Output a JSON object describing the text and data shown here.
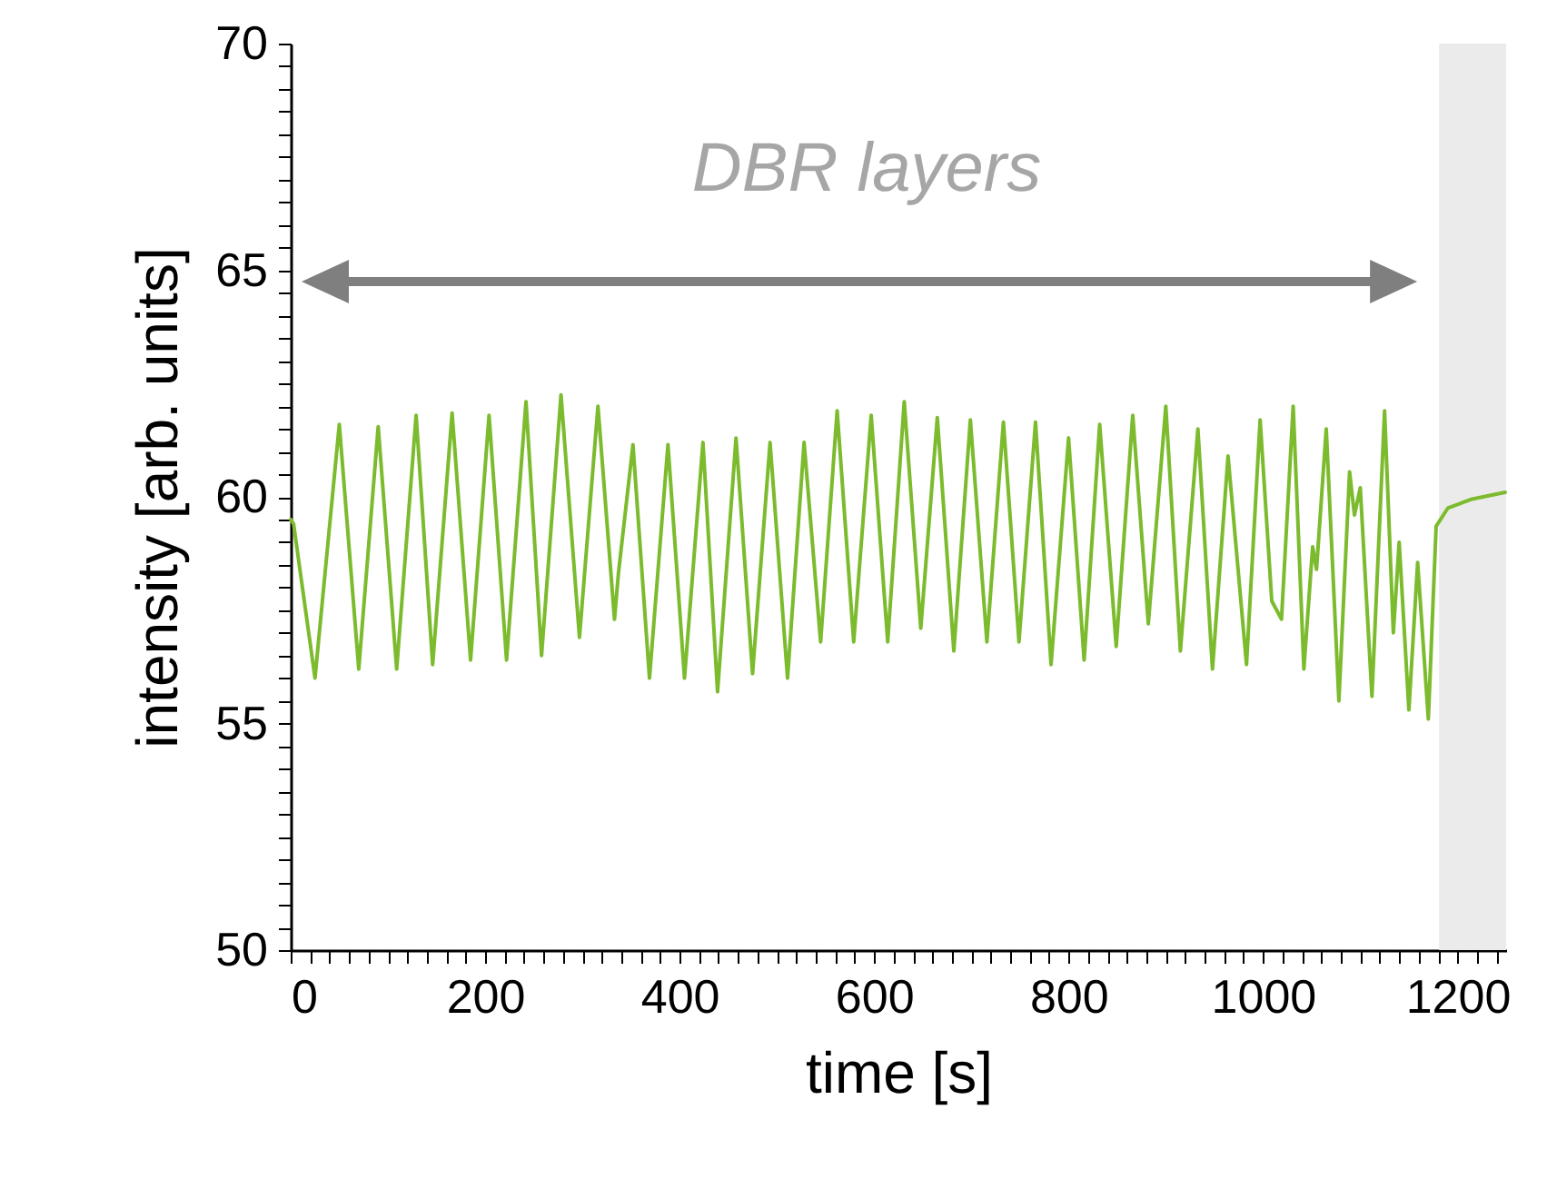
{
  "chart_data": {
    "type": "line",
    "xlabel": "time [s]",
    "ylabel": "intensity [arb. units]",
    "annotations": [
      "DBR layers"
    ],
    "bands": [
      {
        "axis": "x",
        "from": 1181,
        "to": 1250,
        "color": "#ebebeb"
      }
    ],
    "xlim": [
      0,
      1250
    ],
    "ylim": [
      50,
      70
    ],
    "grid": false,
    "marker": "none",
    "line_style": "solid",
    "xticks": [
      0,
      {
        "value": 20,
        "label": null
      },
      {
        "value": 40,
        "label": null
      },
      {
        "value": 60,
        "label": null
      },
      {
        "value": 80,
        "label": null
      },
      {
        "value": 100,
        "label": null
      },
      {
        "value": 120,
        "label": null
      },
      {
        "value": 140,
        "label": null
      },
      {
        "value": 160,
        "label": null
      },
      {
        "value": 180,
        "label": null
      },
      200,
      {
        "value": 220,
        "label": null
      },
      {
        "value": 240,
        "label": null
      },
      {
        "value": 260,
        "label": null
      },
      {
        "value": 280,
        "label": null
      },
      {
        "value": 300,
        "label": null
      },
      {
        "value": 320,
        "label": null
      },
      {
        "value": 340,
        "label": null
      },
      {
        "value": 360,
        "label": null
      },
      {
        "value": 380,
        "label": null
      },
      400,
      {
        "value": 420,
        "label": null
      },
      {
        "value": 440,
        "label": null
      },
      {
        "value": 460,
        "label": null
      },
      {
        "value": 480,
        "label": null
      },
      {
        "value": 500,
        "label": null
      },
      {
        "value": 520,
        "label": null
      },
      {
        "value": 540,
        "label": null
      },
      {
        "value": 560,
        "label": null
      },
      {
        "value": 580,
        "label": null
      },
      600,
      {
        "value": 620,
        "label": null
      },
      {
        "value": 640,
        "label": null
      },
      {
        "value": 660,
        "label": null
      },
      {
        "value": 680,
        "label": null
      },
      {
        "value": 700,
        "label": null
      },
      {
        "value": 720,
        "label": null
      },
      {
        "value": 740,
        "label": null
      },
      {
        "value": 760,
        "label": null
      },
      {
        "value": 780,
        "label": null
      },
      800,
      {
        "value": 820,
        "label": null
      },
      {
        "value": 840,
        "label": null
      },
      {
        "value": 860,
        "label": null
      },
      {
        "value": 880,
        "label": null
      },
      {
        "value": 900,
        "label": null
      },
      {
        "value": 920,
        "label": null
      },
      {
        "value": 940,
        "label": null
      },
      {
        "value": 960,
        "label": null
      },
      {
        "value": 980,
        "label": null
      },
      1000,
      {
        "value": 1020,
        "label": null
      },
      {
        "value": 1040,
        "label": null
      },
      {
        "value": 1060,
        "label": null
      },
      {
        "value": 1080,
        "label": null
      },
      {
        "value": 1100,
        "label": null
      },
      {
        "value": 1120,
        "label": null
      },
      {
        "value": 1140,
        "label": null
      },
      {
        "value": 1160,
        "label": null
      },
      {
        "value": 1180,
        "label": null
      },
      1200,
      {
        "value": 1220,
        "label": null
      },
      {
        "value": 1240,
        "label": null
      }
    ],
    "yticks": [
      50,
      {
        "value": 50.5,
        "label": null
      },
      {
        "value": 51,
        "label": null
      },
      {
        "value": 51.5,
        "label": null
      },
      {
        "value": 52,
        "label": null
      },
      {
        "value": 52.5,
        "label": null
      },
      {
        "value": 53,
        "label": null
      },
      {
        "value": 53.5,
        "label": null
      },
      {
        "value": 54,
        "label": null
      },
      {
        "value": 54.5,
        "label": null
      },
      55,
      {
        "value": 55.5,
        "label": null
      },
      {
        "value": 56,
        "label": null
      },
      {
        "value": 56.5,
        "label": null
      },
      {
        "value": 57,
        "label": null
      },
      {
        "value": 57.5,
        "label": null
      },
      {
        "value": 58,
        "label": null
      },
      {
        "value": 58.5,
        "label": null
      },
      {
        "value": 59,
        "label": null
      },
      {
        "value": 59.5,
        "label": null
      },
      60,
      {
        "value": 60.5,
        "label": null
      },
      {
        "value": 61,
        "label": null
      },
      {
        "value": 61.5,
        "label": null
      },
      {
        "value": 62,
        "label": null
      },
      {
        "value": 62.5,
        "label": null
      },
      {
        "value": 63,
        "label": null
      },
      {
        "value": 63.5,
        "label": null
      },
      {
        "value": 64,
        "label": null
      },
      {
        "value": 64.5,
        "label": null
      },
      65,
      {
        "value": 65.5,
        "label": null
      },
      {
        "value": 66,
        "label": null
      },
      {
        "value": 66.5,
        "label": null
      },
      {
        "value": 67,
        "label": null
      },
      {
        "value": 67.5,
        "label": null
      },
      {
        "value": 68,
        "label": null
      },
      {
        "value": 68.5,
        "label": null
      },
      {
        "value": 69,
        "label": null
      },
      {
        "value": 69.5,
        "label": null
      },
      70
    ],
    "x": [
      0,
      3,
      25,
      50,
      70,
      90,
      109,
      129,
      146,
      166,
      185,
      204,
      222,
      242,
      258,
      278,
      297,
      316,
      333,
      337,
      352,
      369,
      388,
      405,
      424,
      439,
      458,
      475,
      493,
      511,
      528,
      545,
      562,
      579,
      597,
      614,
      631,
      648,
      665,
      682,
      699,
      716,
      733,
      749,
      766,
      782,
      800,
      816,
      832,
      849,
      866,
      882,
      900,
      915,
      933,
      948,
      964,
      983,
      997,
      1009,
      1019,
      1031,
      1042,
      1051,
      1055,
      1065,
      1078,
      1089,
      1094,
      1100,
      1112,
      1125,
      1134,
      1140,
      1150,
      1159,
      1170,
      1178,
      1190,
      1215,
      1249
    ],
    "series": [
      {
        "color": "#7cbb2e",
        "values": [
          59.5,
          59.4,
          56.0,
          61.6,
          56.2,
          61.55,
          56.2,
          61.8,
          56.3,
          61.85,
          56.4,
          61.8,
          56.4,
          62.1,
          56.5,
          62.25,
          56.9,
          62.0,
          57.3,
          58.3,
          61.15,
          56.0,
          61.15,
          56.0,
          61.2,
          55.7,
          61.3,
          56.1,
          61.2,
          56.0,
          61.2,
          56.8,
          61.9,
          56.8,
          61.8,
          56.8,
          62.1,
          57.1,
          61.75,
          56.6,
          61.7,
          56.8,
          61.65,
          56.8,
          61.65,
          56.3,
          61.3,
          56.4,
          61.6,
          56.7,
          61.8,
          57.2,
          62.0,
          56.6,
          61.5,
          56.2,
          60.9,
          56.3,
          61.7,
          57.7,
          57.3,
          62.0,
          56.2,
          58.9,
          58.4,
          61.5,
          55.5,
          60.55,
          59.6,
          60.2,
          55.6,
          61.9,
          57.0,
          59.0,
          55.3,
          58.55,
          55.1,
          59.35,
          59.75,
          59.95,
          60.1
        ]
      }
    ]
  }
}
